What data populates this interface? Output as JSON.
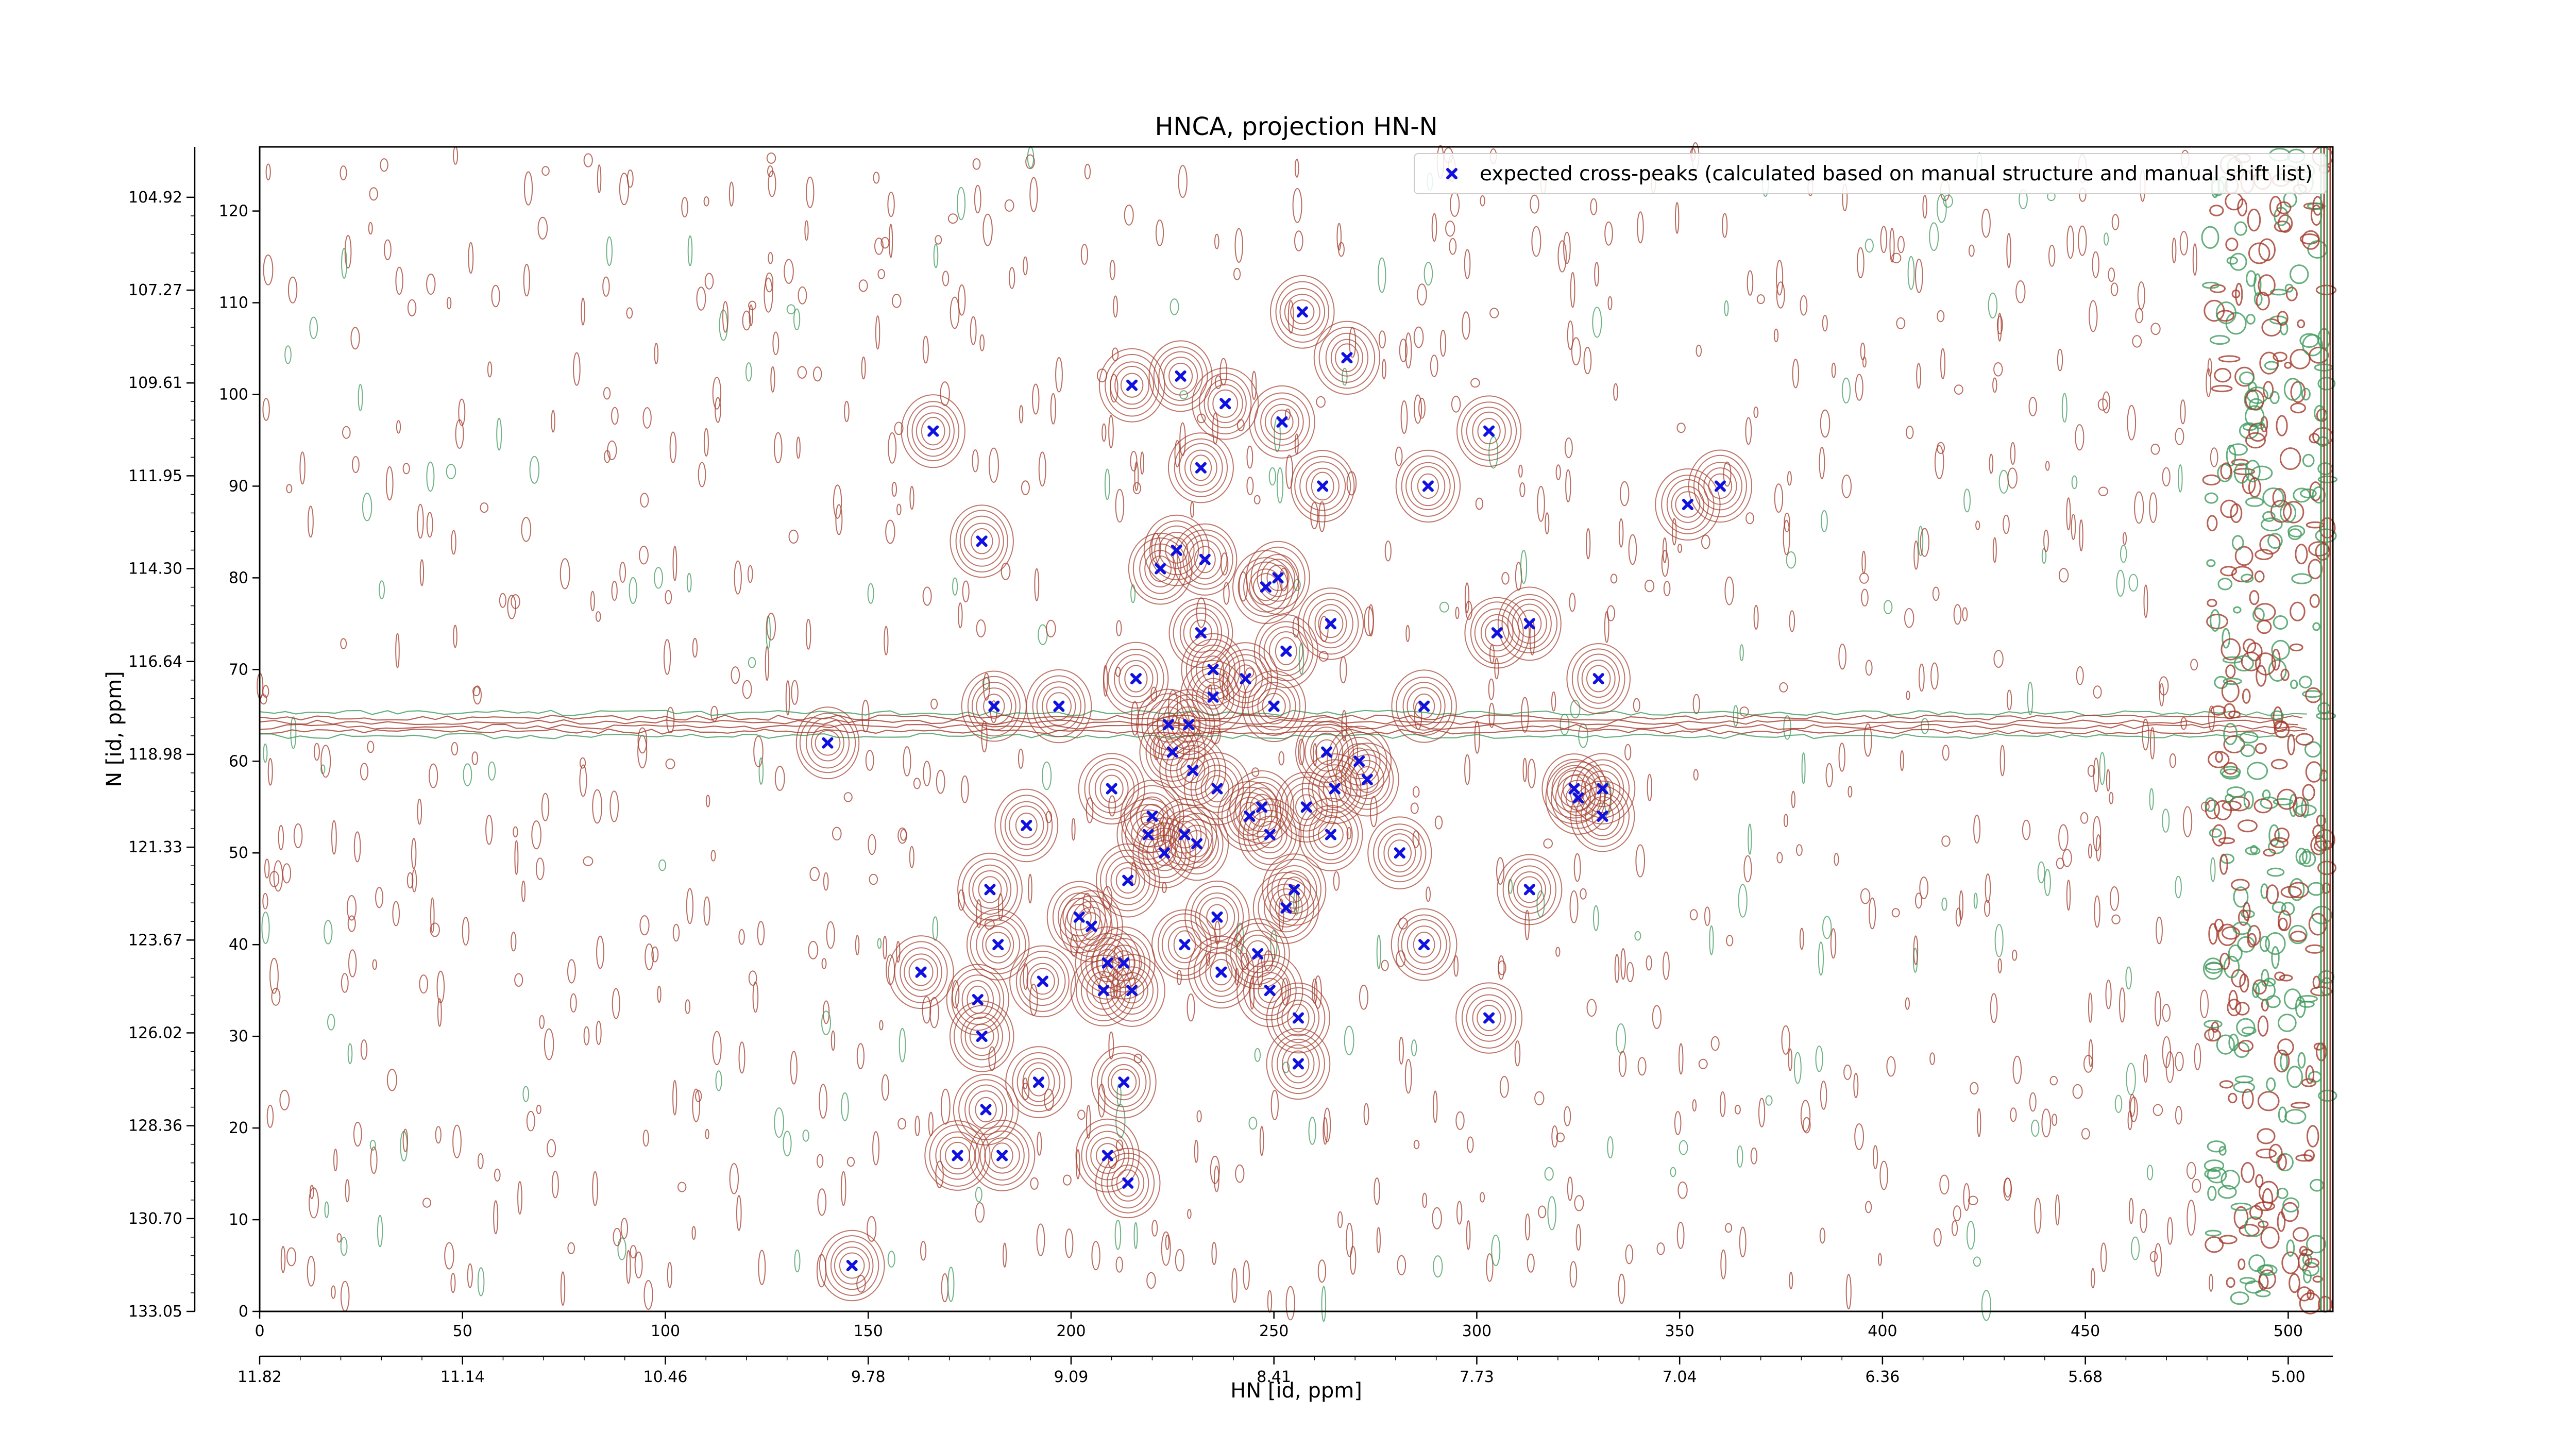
{
  "chart_data": {
    "type": "scatter",
    "title": "HNCA, projection HN-N",
    "xlabel": "HN [id, ppm]",
    "ylabel": "N [id, ppm]",
    "xlim": [
      0,
      511
    ],
    "ylim": [
      0,
      127
    ],
    "x_ticks_index": [
      "0",
      "50",
      "100",
      "150",
      "200",
      "250",
      "300",
      "350",
      "400",
      "450",
      "500"
    ],
    "y_ticks_index": [
      "0",
      "10",
      "20",
      "30",
      "40",
      "50",
      "60",
      "70",
      "80",
      "90",
      "100",
      "110",
      "120"
    ],
    "x_ticks_ppm": [
      "11.82",
      "11.14",
      "10.46",
      "9.78",
      "9.09",
      "8.41",
      "7.73",
      "7.04",
      "6.36",
      "5.68",
      "5.00"
    ],
    "y_ticks_ppm": [
      "104.92",
      "107.27",
      "109.61",
      "111.95",
      "114.30",
      "116.64",
      "118.98",
      "121.33",
      "123.67",
      "126.02",
      "128.36",
      "130.70",
      "133.05"
    ],
    "legend": {
      "placement": "top-right",
      "label": "expected cross-peaks (calculated based on manual structure and manual shift list)"
    },
    "colors": {
      "peak": "#1010e0",
      "contour_positive": "#a33a2a",
      "contour_negative": "#3f9a5c"
    },
    "grid": false,
    "series": [
      {
        "marker": "x",
        "points": [
          [
            146,
            5
          ],
          [
            172,
            17
          ],
          [
            183,
            17
          ],
          [
            179,
            22
          ],
          [
            192,
            25
          ],
          [
            213,
            25
          ],
          [
            209,
            17
          ],
          [
            214,
            14
          ],
          [
            178,
            30
          ],
          [
            177,
            34
          ],
          [
            182,
            40
          ],
          [
            193,
            36
          ],
          [
            163,
            37
          ],
          [
            180,
            46
          ],
          [
            189,
            53
          ],
          [
            202,
            43
          ],
          [
            205,
            42
          ],
          [
            209,
            38
          ],
          [
            208,
            35
          ],
          [
            213,
            38
          ],
          [
            215,
            35
          ],
          [
            214,
            47
          ],
          [
            210,
            57
          ],
          [
            220,
            54
          ],
          [
            219,
            52
          ],
          [
            223,
            50
          ],
          [
            228,
            52
          ],
          [
            231,
            51
          ],
          [
            225,
            61
          ],
          [
            230,
            59
          ],
          [
            236,
            57
          ],
          [
            228,
            40
          ],
          [
            237,
            37
          ],
          [
            236,
            43
          ],
          [
            246,
            39
          ],
          [
            249,
            35
          ],
          [
            256,
            32
          ],
          [
            256,
            27
          ],
          [
            255,
            46
          ],
          [
            253,
            44
          ],
          [
            244,
            54
          ],
          [
            247,
            55
          ],
          [
            249,
            52
          ],
          [
            258,
            55
          ],
          [
            264,
            52
          ],
          [
            263,
            61
          ],
          [
            271,
            60
          ],
          [
            265,
            57
          ],
          [
            273,
            58
          ],
          [
            281,
            50
          ],
          [
            287,
            40
          ],
          [
            313,
            46
          ],
          [
            303,
            32
          ],
          [
            324,
            57
          ],
          [
            325,
            56
          ],
          [
            331,
            57
          ],
          [
            331,
            54
          ],
          [
            287,
            66
          ],
          [
            305,
            74
          ],
          [
            313,
            75
          ],
          [
            330,
            69
          ],
          [
            181,
            66
          ],
          [
            197,
            66
          ],
          [
            216,
            69
          ],
          [
            224,
            64
          ],
          [
            229,
            64
          ],
          [
            232,
            74
          ],
          [
            235,
            67
          ],
          [
            235,
            70
          ],
          [
            243,
            69
          ],
          [
            250,
            66
          ],
          [
            253,
            72
          ],
          [
            264,
            75
          ],
          [
            222,
            81
          ],
          [
            226,
            83
          ],
          [
            233,
            82
          ],
          [
            248,
            79
          ],
          [
            251,
            80
          ],
          [
            140,
            62
          ],
          [
            166,
            96
          ],
          [
            178,
            84
          ],
          [
            288,
            90
          ],
          [
            257,
            109
          ],
          [
            268,
            104
          ],
          [
            215,
            101
          ],
          [
            227,
            102
          ],
          [
            238,
            99
          ],
          [
            252,
            97
          ],
          [
            232,
            92
          ],
          [
            262,
            90
          ],
          [
            303,
            96
          ],
          [
            352,
            88
          ],
          [
            360,
            90
          ]
        ]
      }
    ]
  }
}
